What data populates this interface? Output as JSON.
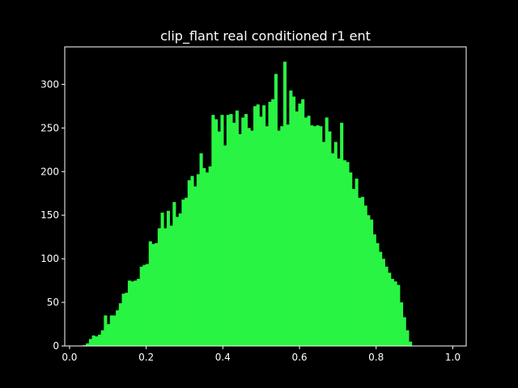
{
  "chart_data": {
    "type": "bar",
    "title": "clip_flant real conditioned r1 ent",
    "xlabel": "",
    "ylabel": "",
    "xlim": [
      -0.0125,
      1.035
    ],
    "ylim": [
      0,
      343
    ],
    "xticks": [
      0.0,
      0.2,
      0.4,
      0.6,
      0.8,
      1.0
    ],
    "xtick_labels": [
      "0.0",
      "0.2",
      "0.4",
      "0.6",
      "0.8",
      "1.0"
    ],
    "yticks": [
      0,
      50,
      100,
      150,
      200,
      250,
      300
    ],
    "ytick_labels": [
      "0",
      "50",
      "100",
      "150",
      "200",
      "250",
      "300"
    ],
    "grid": false,
    "bar_color": "#29f443",
    "background": "#000000",
    "foreground": "#ffffff",
    "bin_start": 0.035,
    "bin_width": 0.0078,
    "counts": [
      1,
      3,
      8,
      12,
      11,
      13,
      18,
      35,
      25,
      35,
      35,
      41,
      49,
      60,
      61,
      75,
      74,
      75,
      77,
      91,
      93,
      94,
      120,
      117,
      118,
      135,
      153,
      135,
      155,
      138,
      165,
      148,
      152,
      168,
      170,
      190,
      195,
      183,
      197,
      221,
      204,
      199,
      206,
      265,
      260,
      246,
      265,
      230,
      265,
      266,
      256,
      270,
      243,
      262,
      266,
      250,
      247,
      275,
      277,
      263,
      276,
      252,
      280,
      283,
      312,
      247,
      252,
      326,
      254,
      293,
      286,
      269,
      278,
      283,
      262,
      264,
      253,
      252,
      253,
      252,
      234,
      262,
      246,
      221,
      234,
      215,
      256,
      213,
      211,
      199,
      180,
      192,
      170,
      171,
      161,
      150,
      145,
      128,
      118,
      108,
      100,
      91,
      84,
      77,
      74,
      70,
      50,
      33,
      18,
      5
    ]
  }
}
